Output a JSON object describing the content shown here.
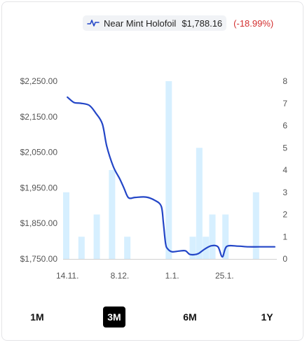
{
  "legend": {
    "label": "Near Mint Holofoil",
    "price": "$1,788.16",
    "change": "(-18.99%)",
    "icon": "pulse-icon",
    "line_color": "#2346c7",
    "change_color": "#d32f2f"
  },
  "ranges": [
    {
      "label": "1M",
      "active": false
    },
    {
      "label": "3M",
      "active": true
    },
    {
      "label": "6M",
      "active": false
    },
    {
      "label": "1Y",
      "active": false
    }
  ],
  "chart_data": {
    "type": "line",
    "title": "",
    "xlabel": "",
    "ylabel": "",
    "y_left": {
      "min": 1750,
      "max": 2250,
      "ticks": [
        1750,
        1850,
        1950,
        2050,
        2150,
        2250
      ],
      "tick_labels": [
        "$1,750.00",
        "$1,850.00",
        "$1,950.00",
        "$2,050.00",
        "$2,150.00",
        "$2,250.00"
      ]
    },
    "y_right": {
      "min": 0,
      "max": 8,
      "ticks": [
        0,
        1,
        2,
        3,
        4,
        5,
        6,
        7,
        8
      ],
      "tick_labels": [
        "0",
        "1",
        "2",
        "3",
        "4",
        "5",
        "6",
        "7",
        "8"
      ]
    },
    "x_range": [
      0,
      98
    ],
    "x_ticks": [
      {
        "x": 2,
        "label": "14.11."
      },
      {
        "x": 26,
        "label": "8.12."
      },
      {
        "x": 50,
        "label": "1.1."
      },
      {
        "x": 74,
        "label": "25.1."
      }
    ],
    "grid": false,
    "series": [
      {
        "kind": "bar",
        "axis": "right",
        "color": "#d6efff",
        "points": [
          {
            "x": 0,
            "y": 3
          },
          {
            "x": 7,
            "y": 1
          },
          {
            "x": 14,
            "y": 2
          },
          {
            "x": 21,
            "y": 4
          },
          {
            "x": 28,
            "y": 1
          },
          {
            "x": 47,
            "y": 8
          },
          {
            "x": 58,
            "y": 1
          },
          {
            "x": 61,
            "y": 5
          },
          {
            "x": 64,
            "y": 1
          },
          {
            "x": 67,
            "y": 2
          },
          {
            "x": 73,
            "y": 2
          },
          {
            "x": 87,
            "y": 3
          }
        ]
      },
      {
        "kind": "line",
        "axis": "left",
        "color": "#2346c7",
        "points": [
          {
            "x": 2,
            "y": 2205
          },
          {
            "x": 5,
            "y": 2190
          },
          {
            "x": 8,
            "y": 2188
          },
          {
            "x": 12,
            "y": 2182
          },
          {
            "x": 15,
            "y": 2160
          },
          {
            "x": 18,
            "y": 2130
          },
          {
            "x": 20,
            "y": 2068
          },
          {
            "x": 23,
            "y": 2010
          },
          {
            "x": 26,
            "y": 1975
          },
          {
            "x": 28,
            "y": 1948
          },
          {
            "x": 30,
            "y": 1922
          },
          {
            "x": 33,
            "y": 1923
          },
          {
            "x": 38,
            "y": 1924
          },
          {
            "x": 42,
            "y": 1915
          },
          {
            "x": 45,
            "y": 1898
          },
          {
            "x": 46,
            "y": 1850
          },
          {
            "x": 47,
            "y": 1793
          },
          {
            "x": 48,
            "y": 1778
          },
          {
            "x": 50,
            "y": 1770
          },
          {
            "x": 53,
            "y": 1772
          },
          {
            "x": 56,
            "y": 1773
          },
          {
            "x": 58,
            "y": 1763
          },
          {
            "x": 60,
            "y": 1762
          },
          {
            "x": 62,
            "y": 1765
          },
          {
            "x": 65,
            "y": 1778
          },
          {
            "x": 68,
            "y": 1787
          },
          {
            "x": 71,
            "y": 1784
          },
          {
            "x": 73,
            "y": 1756
          },
          {
            "x": 75,
            "y": 1785
          },
          {
            "x": 80,
            "y": 1786
          },
          {
            "x": 85,
            "y": 1784
          },
          {
            "x": 90,
            "y": 1784
          },
          {
            "x": 97,
            "y": 1784
          }
        ]
      }
    ]
  }
}
